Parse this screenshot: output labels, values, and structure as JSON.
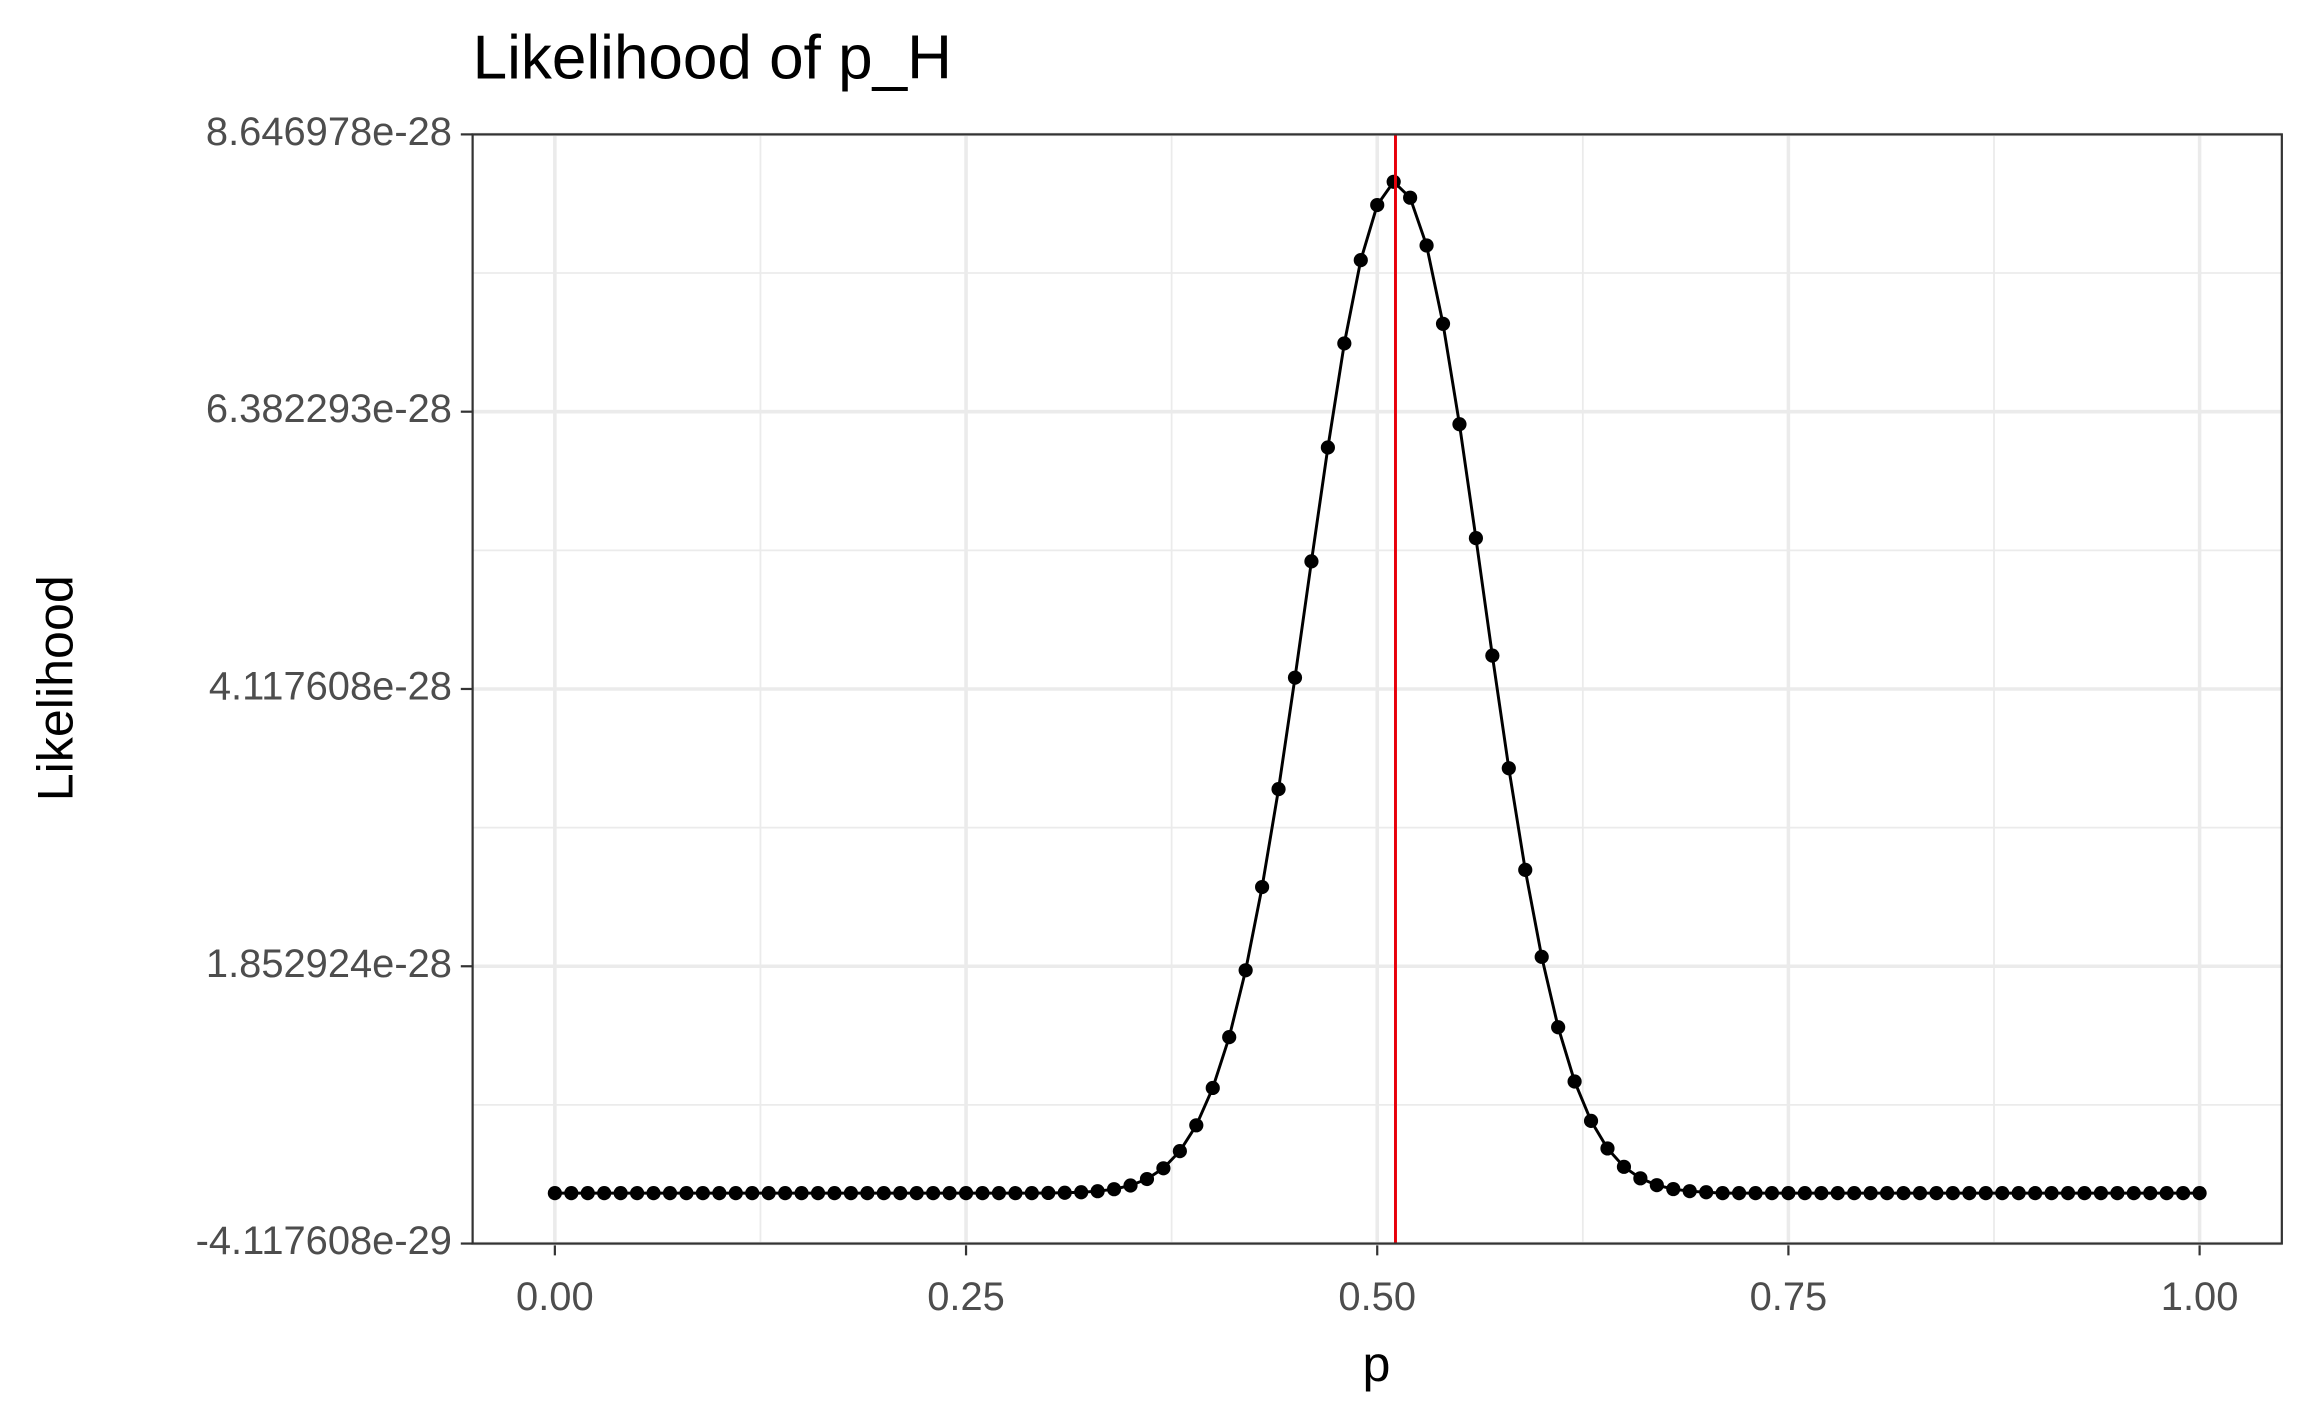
{
  "chart_data": {
    "type": "line",
    "title": "Likelihood of p_H",
    "x_label": "p",
    "y_label": "Likelihood",
    "x": [
      0,
      0.01,
      0.02,
      0.03,
      0.04,
      0.05,
      0.06,
      0.07,
      0.08,
      0.09,
      0.1,
      0.11,
      0.12,
      0.13,
      0.14,
      0.15,
      0.16,
      0.17,
      0.18,
      0.19,
      0.2,
      0.21,
      0.22,
      0.23,
      0.24,
      0.25,
      0.26,
      0.27,
      0.28,
      0.29,
      0.3,
      0.31,
      0.32,
      0.33,
      0.34,
      0.35,
      0.36,
      0.37,
      0.38,
      0.39,
      0.4,
      0.41,
      0.42,
      0.43,
      0.44,
      0.45,
      0.46,
      0.47,
      0.48,
      0.49,
      0.5,
      0.51,
      0.52,
      0.53,
      0.54,
      0.55,
      0.56,
      0.57,
      0.58,
      0.59,
      0.6,
      0.61,
      0.62,
      0.63,
      0.64,
      0.65,
      0.66,
      0.67,
      0.68,
      0.69,
      0.7,
      0.71,
      0.72,
      0.73,
      0.74,
      0.75,
      0.76,
      0.77,
      0.78,
      0.79,
      0.8,
      0.81,
      0.82,
      0.83,
      0.84,
      0.85,
      0.86,
      0.87,
      0.88,
      0.89,
      0.9,
      0.91,
      0.92,
      0.93,
      0.94,
      0.95,
      0.96,
      0.97,
      0.98,
      0.99,
      1
    ],
    "series": [
      {
        "name": "Likelihood",
        "color": "#000000",
        "values": [
          0,
          0,
          0,
          0,
          0,
          0,
          0,
          0,
          0,
          0,
          0,
          0,
          0,
          0,
          0,
          0,
          0,
          0,
          0,
          0,
          0,
          0,
          0,
          0,
          0,
          0,
          0,
          0,
          0,
          0,
          1.36e-31,
          3.25e-31,
          7.36e-31,
          1.58e-30,
          3.22e-30,
          6.24e-30,
          1.152e-29,
          2.03e-29,
          3.43e-29,
          5.54e-29,
          8.59e-29,
          1.274e-28,
          1.82e-28,
          2.5e-28,
          3.3e-28,
          4.21e-28,
          5.16e-28,
          6.09e-28,
          6.94e-28,
          7.62e-28,
          8.07e-28,
          8.26e-28,
          8.13e-28,
          7.74e-28,
          7.1e-28,
          6.28e-28,
          5.35e-28,
          4.39e-28,
          3.47e-28,
          2.64e-28,
          1.93e-28,
          1.355e-28,
          9.12e-29,
          5.9e-29,
          3.65e-29,
          2.15e-29,
          1.21e-29,
          6.52e-30,
          3.33e-30,
          1.61e-30,
          7.38e-31,
          0,
          0,
          0,
          0,
          0,
          0,
          0,
          0,
          0,
          0,
          0,
          0,
          0,
          0,
          0,
          0,
          0,
          0,
          0,
          0,
          0,
          0,
          0,
          0,
          0,
          0,
          0,
          0,
          0,
          0
        ]
      }
    ],
    "vline": {
      "value": 0.5111,
      "color": "#e8000b"
    },
    "xlim": [
      -0.05,
      1.05
    ],
    "ylim": [
      -4.117608e-29,
      8.646978e-28
    ],
    "xticks": [
      {
        "value": 0,
        "label": "0.00"
      },
      0.25,
      {
        "value": 0.5,
        "label": "0.50"
      },
      0.75,
      {
        "value": 1,
        "label": "1.00"
      }
    ],
    "yticks": [
      -4.117608e-29,
      1.852924e-28,
      4.117608e-28,
      6.382293e-28,
      8.646978e-28
    ],
    "grid": true
  }
}
